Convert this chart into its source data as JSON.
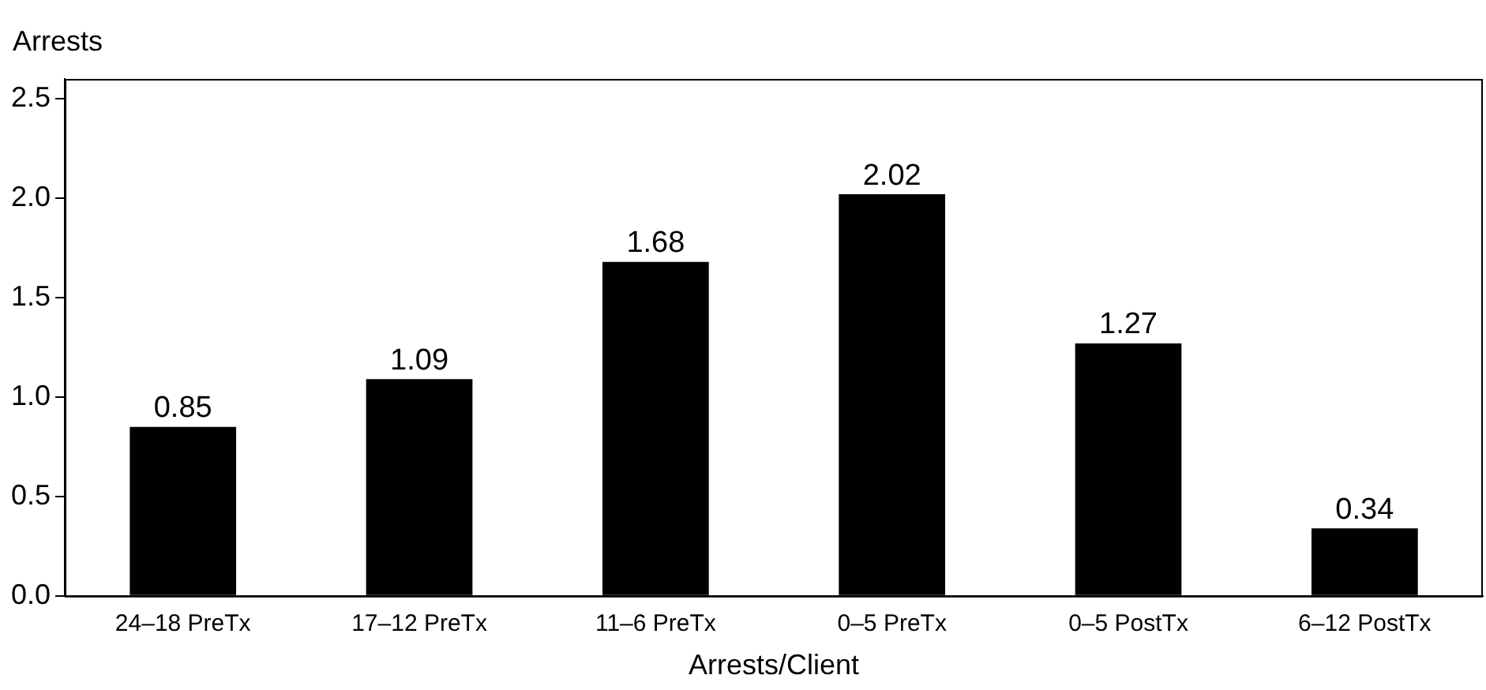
{
  "chart_data": {
    "type": "bar",
    "ylabel": "Arrests",
    "xlabel": "Arrests/Client",
    "categories": [
      "24–18 PreTx",
      "17–12 PreTx",
      "11–6 PreTx",
      "0–5 PreTx",
      "0–5 PostTx",
      "6–12 PostTx"
    ],
    "values": [
      0.85,
      1.09,
      1.68,
      2.02,
      1.27,
      0.34
    ],
    "color": "#000000",
    "ylim": [
      0,
      2.6
    ],
    "yticks": [
      {
        "value": 0,
        "label": "0.0"
      },
      {
        "value": 0.5,
        "label": "0.5"
      },
      {
        "value": 1,
        "label": "1.0"
      },
      {
        "value": 1.5,
        "label": "1.5"
      },
      {
        "value": 2,
        "label": "2.0"
      },
      {
        "value": 2.5,
        "label": "2.5"
      }
    ],
    "data_labels": true,
    "grid": false,
    "legend": false
  }
}
